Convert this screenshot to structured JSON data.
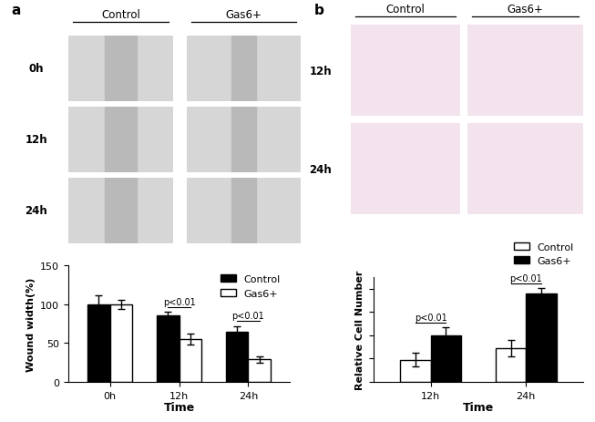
{
  "panels": [
    {
      "label": "a",
      "columns": [
        "Control",
        "Gas6+"
      ],
      "rows": [
        "0h",
        "12h",
        "24h"
      ]
    },
    {
      "label": "b",
      "columns": [
        "Control",
        "Gas6+"
      ],
      "rows": [
        "12h",
        "24h"
      ]
    }
  ],
  "chart_data": [
    {
      "type": "bar",
      "categories": [
        "0h",
        "12h",
        "24h"
      ],
      "series": [
        {
          "name": "Control",
          "color": "#000000",
          "values": [
            100,
            86,
            65
          ],
          "errors": [
            11,
            4,
            7
          ]
        },
        {
          "name": "Gas6+",
          "color": "#ffffff",
          "values": [
            100,
            55,
            29
          ],
          "errors": [
            6,
            7,
            4
          ]
        }
      ],
      "x_label": "Time",
      "y_label": "Wound width(%)",
      "ylim": [
        0,
        150
      ],
      "yticks": [
        0,
        50,
        100,
        150
      ],
      "legend": "upper right",
      "annotations": [
        {
          "text": "p<0.01",
          "category": "12h"
        },
        {
          "text": "p<0.01",
          "category": "24h"
        }
      ]
    },
    {
      "type": "bar",
      "categories": [
        "12h",
        "24h"
      ],
      "series": [
        {
          "name": "Control",
          "color": "#ffffff",
          "values": [
            1.9,
            2.9
          ],
          "errors": [
            0.6,
            0.7
          ]
        },
        {
          "name": "Gas6+",
          "color": "#000000",
          "values": [
            4.0,
            7.6
          ],
          "errors": [
            0.7,
            0.5
          ]
        }
      ],
      "x_label": "Time",
      "y_label": "Relative Cell Number",
      "ylim": [
        0,
        9
      ],
      "tick_labels": "x",
      "legend": "upper right",
      "annotations": [
        {
          "text": "p<0.01",
          "category": "12h"
        },
        {
          "text": "p<0.01",
          "category": "24h"
        }
      ]
    }
  ]
}
